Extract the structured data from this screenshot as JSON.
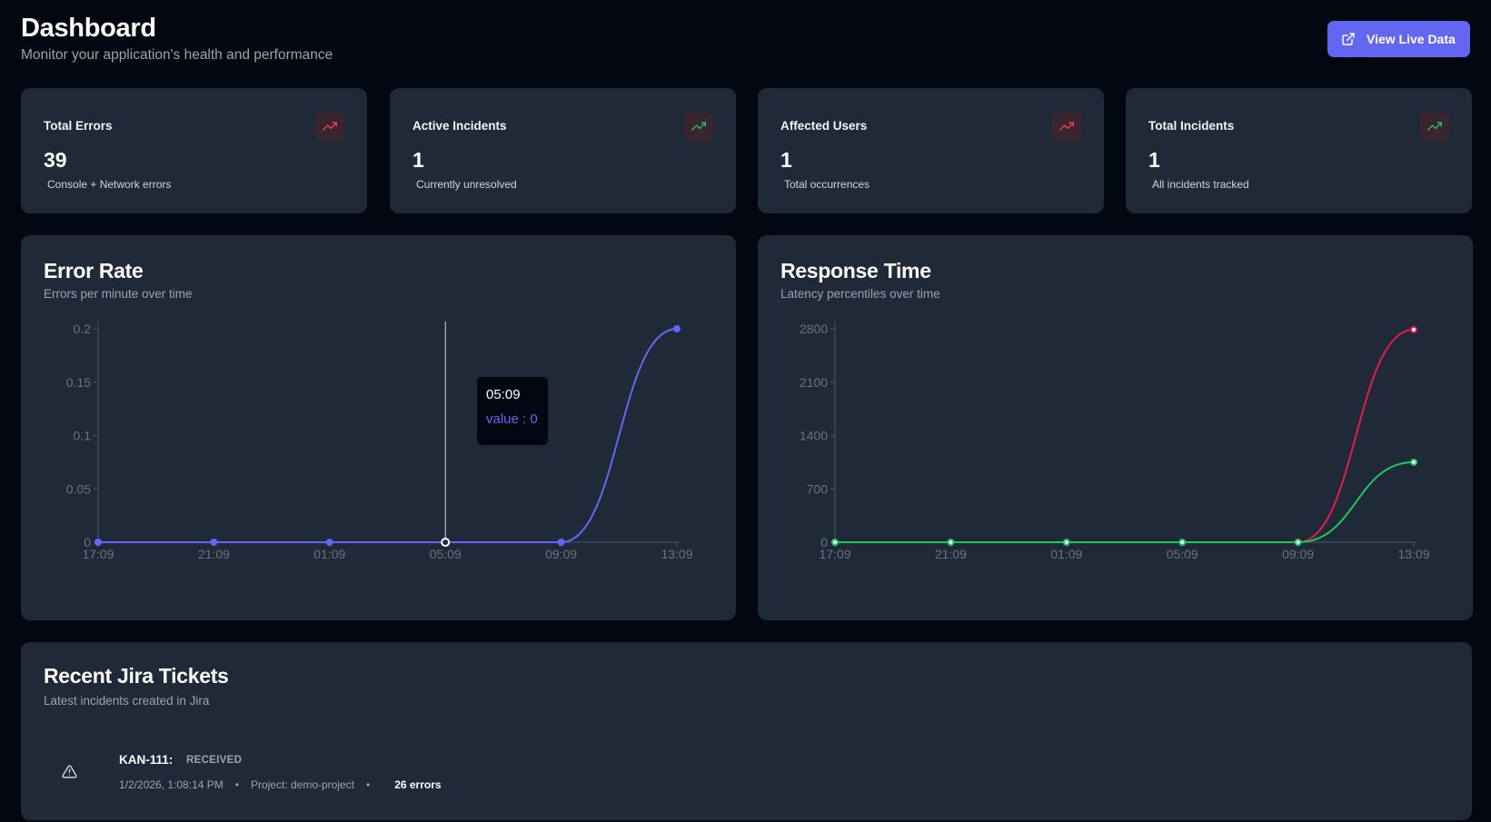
{
  "header": {
    "title": "Dashboard",
    "subtitle": "Monitor your application's health and performance",
    "live_button_label": "View Live Data"
  },
  "stats": [
    {
      "title": "Total Errors",
      "value": "39",
      "note": "Console + Network errors",
      "icon": "trending-up-icon",
      "icon_color": "#ef4444"
    },
    {
      "title": "Active Incidents",
      "value": "1",
      "note": "Currently unresolved",
      "icon": "trending-up-icon",
      "icon_color": "#22c55e"
    },
    {
      "title": "Affected Users",
      "value": "1",
      "note": "Total occurrences",
      "icon": "trending-up-icon",
      "icon_color": "#ef4444"
    },
    {
      "title": "Total Incidents",
      "value": "1",
      "note": "All incidents tracked",
      "icon": "trending-up-icon",
      "icon_color": "#22c55e"
    }
  ],
  "error_rate": {
    "title": "Error Rate",
    "subtitle": "Errors per minute over time",
    "tooltip": {
      "time": "05:09",
      "value_text": "value : 0"
    }
  },
  "response_time": {
    "title": "Response Time",
    "subtitle": "Latency percentiles over time"
  },
  "tickets": {
    "title": "Recent Jira Tickets",
    "subtitle": "Latest incidents created in Jira",
    "items": [
      {
        "id": "KAN-111:",
        "status": "RECEIVED",
        "date": "1/2/2026, 1:08:14 PM",
        "project": "Project: demo-project",
        "errors": "26 errors"
      }
    ]
  },
  "colors": {
    "accent": "#6366f1",
    "red": "#e11d48",
    "green": "#22c55e"
  },
  "chart_data": [
    {
      "type": "line",
      "categories": [
        "17:09",
        "21:09",
        "01:09",
        "05:09",
        "09:09",
        "13:09"
      ],
      "series": [
        {
          "values": [
            0,
            0,
            0,
            0,
            0,
            0.2
          ],
          "color": "#6366f1"
        }
      ],
      "yticks": [
        "0",
        "0.05",
        "0.1",
        "0.15",
        "0.2"
      ],
      "ylim": [
        0,
        0.2
      ],
      "highlight_index": 3,
      "grid": false
    },
    {
      "type": "line",
      "categories": [
        "17:09",
        "21:09",
        "01:09",
        "05:09",
        "09:09",
        "13:09"
      ],
      "series": [
        {
          "values": [
            0,
            0,
            0,
            0,
            0,
            2790
          ],
          "color": "#e11d48"
        },
        {
          "values": [
            0,
            0,
            0,
            0,
            0,
            1050
          ],
          "color": "#22c55e"
        }
      ],
      "yticks": [
        "0",
        "700",
        "1400",
        "2100",
        "2800"
      ],
      "ylim": [
        0,
        2800
      ],
      "grid": false
    }
  ]
}
